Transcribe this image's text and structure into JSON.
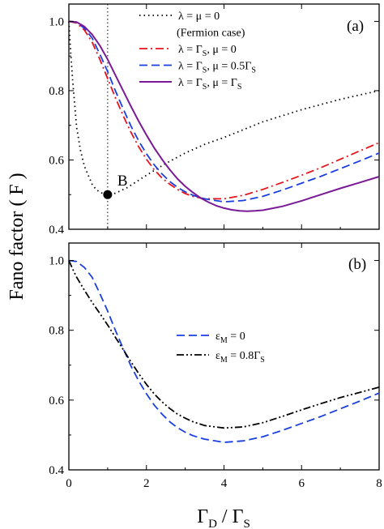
{
  "chart_data": [
    {
      "panel": "(a)",
      "type": "line",
      "xlabel": "Γ_D / Γ_S",
      "ylabel": "Fano factor ( F )",
      "xlim": [
        0,
        8
      ],
      "ylim": [
        0.4,
        1.05
      ],
      "y_ticks": [
        0.4,
        0.6,
        0.8,
        1.0
      ],
      "x_ticks": [
        0,
        2,
        4,
        6,
        8
      ],
      "grid": false,
      "legend_position": "top-right",
      "series": [
        {
          "name": "λ = μ = 0",
          "sublabel": "(Fermion case)",
          "color": "#000000",
          "style": "dotted",
          "x": [
            0.0,
            0.05,
            0.1,
            0.2,
            0.3,
            0.4,
            0.5,
            0.6,
            0.7,
            0.8,
            0.9,
            1.0,
            1.2,
            1.5,
            2.0,
            2.5,
            3.0,
            3.5,
            4.0,
            5.0,
            6.0,
            7.0,
            8.0
          ],
          "y": [
            1.0,
            0.905,
            0.826,
            0.694,
            0.627,
            0.582,
            0.556,
            0.53,
            0.515,
            0.507,
            0.502,
            0.5,
            0.504,
            0.52,
            0.556,
            0.59,
            0.62,
            0.645,
            0.665,
            0.71,
            0.745,
            0.775,
            0.8
          ]
        },
        {
          "name": "λ = Γ_S, μ = 0",
          "color": "#e8141c",
          "style": "dashdot",
          "x": [
            0.0,
            0.2,
            0.4,
            0.6,
            0.8,
            1.0,
            1.2,
            1.4,
            1.6,
            1.8,
            2.0,
            2.2,
            2.4,
            2.6,
            2.8,
            3.0,
            3.2,
            3.5,
            4.0,
            4.5,
            5.0,
            5.5,
            6.0,
            6.5,
            7.0,
            7.5,
            8.0
          ],
          "y": [
            1.0,
            0.995,
            0.975,
            0.94,
            0.89,
            0.835,
            0.78,
            0.728,
            0.68,
            0.638,
            0.602,
            0.572,
            0.548,
            0.53,
            0.515,
            0.503,
            0.495,
            0.488,
            0.488,
            0.498,
            0.515,
            0.535,
            0.556,
            0.578,
            0.602,
            0.626,
            0.65
          ]
        },
        {
          "name": "λ = Γ_S, μ = 0.5Γ_S",
          "color": "#1a3fe0",
          "style": "dashed",
          "x": [
            0.0,
            0.2,
            0.4,
            0.6,
            0.8,
            1.0,
            1.2,
            1.4,
            1.6,
            1.8,
            2.0,
            2.2,
            2.4,
            2.6,
            2.8,
            3.0,
            3.2,
            3.5,
            4.0,
            4.5,
            5.0,
            5.5,
            6.0,
            6.5,
            7.0,
            7.5,
            8.0
          ],
          "y": [
            1.0,
            0.997,
            0.98,
            0.952,
            0.905,
            0.855,
            0.8,
            0.748,
            0.698,
            0.655,
            0.618,
            0.586,
            0.56,
            0.538,
            0.521,
            0.508,
            0.498,
            0.488,
            0.479,
            0.483,
            0.495,
            0.513,
            0.533,
            0.553,
            0.575,
            0.597,
            0.62
          ]
        },
        {
          "name": "λ = Γ_S, μ = Γ_S",
          "color": "#7a1a96",
          "style": "solid",
          "x": [
            0.0,
            0.2,
            0.4,
            0.6,
            0.8,
            1.0,
            1.2,
            1.4,
            1.6,
            1.8,
            2.0,
            2.2,
            2.4,
            2.6,
            2.8,
            3.0,
            3.2,
            3.4,
            3.6,
            3.8,
            4.0,
            4.2,
            4.4,
            4.6,
            4.8,
            5.0,
            5.5,
            6.0,
            6.5,
            7.0,
            7.5,
            8.0
          ],
          "y": [
            1.0,
            0.998,
            0.985,
            0.962,
            0.93,
            0.89,
            0.845,
            0.8,
            0.755,
            0.712,
            0.672,
            0.635,
            0.602,
            0.572,
            0.546,
            0.524,
            0.506,
            0.49,
            0.478,
            0.468,
            0.461,
            0.456,
            0.453,
            0.452,
            0.453,
            0.455,
            0.466,
            0.482,
            0.5,
            0.518,
            0.535,
            0.552
          ]
        }
      ],
      "annotations": [
        {
          "text": "B",
          "x": 1.0,
          "y": 0.5
        },
        {
          "text": "(a)"
        }
      ],
      "reference_line": {
        "x": 1.0,
        "style": "dotted"
      }
    },
    {
      "panel": "(b)",
      "type": "line",
      "xlabel": "Γ_D / Γ_S",
      "ylabel": "Fano factor ( F )",
      "xlim": [
        0,
        8
      ],
      "ylim": [
        0.4,
        1.05
      ],
      "y_ticks": [
        0.4,
        0.6,
        0.8,
        1.0
      ],
      "x_ticks": [
        0,
        2,
        4,
        6,
        8
      ],
      "grid": false,
      "legend_position": "center",
      "series": [
        {
          "name": "ε_M = 0",
          "color": "#1a3fe0",
          "style": "dashed",
          "x": [
            0.0,
            0.2,
            0.4,
            0.6,
            0.8,
            1.0,
            1.2,
            1.4,
            1.6,
            1.8,
            2.0,
            2.2,
            2.4,
            2.6,
            2.8,
            3.0,
            3.2,
            3.5,
            4.0,
            4.5,
            5.0,
            5.5,
            6.0,
            6.5,
            7.0,
            7.5,
            8.0
          ],
          "y": [
            1.0,
            0.997,
            0.98,
            0.952,
            0.905,
            0.855,
            0.8,
            0.748,
            0.698,
            0.655,
            0.618,
            0.586,
            0.56,
            0.538,
            0.521,
            0.508,
            0.498,
            0.488,
            0.479,
            0.483,
            0.495,
            0.513,
            0.533,
            0.553,
            0.575,
            0.597,
            0.62
          ]
        },
        {
          "name": "ε_M = 0.8Γ_S",
          "color": "#000000",
          "style": "dashdotdot",
          "x": [
            0.0,
            0.1,
            0.2,
            0.4,
            0.6,
            0.8,
            1.0,
            1.2,
            1.4,
            1.6,
            1.8,
            2.0,
            2.2,
            2.4,
            2.6,
            2.8,
            3.0,
            3.2,
            3.5,
            4.0,
            4.5,
            5.0,
            5.5,
            6.0,
            6.5,
            7.0,
            7.5,
            8.0
          ],
          "y": [
            1.0,
            0.975,
            0.952,
            0.915,
            0.88,
            0.848,
            0.815,
            0.78,
            0.745,
            0.71,
            0.676,
            0.645,
            0.618,
            0.595,
            0.576,
            0.56,
            0.548,
            0.538,
            0.527,
            0.52,
            0.523,
            0.535,
            0.553,
            0.572,
            0.59,
            0.607,
            0.622,
            0.637
          ]
        }
      ],
      "annotations": [
        {
          "text": "(b)"
        }
      ]
    }
  ],
  "labels": {
    "ylabel": "Fano factor ( F )",
    "xlabel_main": "Γ",
    "xlabel_sub1": "D",
    "xlabel_slash": " / Γ",
    "xlabel_sub2": "S",
    "panel_a": "(a)",
    "panel_b": "(b)",
    "marker_b": "B",
    "legend_a": [
      {
        "text": "λ = μ = 0",
        "sub": "",
        "tail": ""
      },
      {
        "text": "(Fermion case)",
        "sub": "",
        "tail": ""
      },
      {
        "text": "λ = Γ",
        "sub": "S",
        "tail": ", μ = 0"
      },
      {
        "text": "λ = Γ",
        "sub": "S",
        "tail": ", μ = 0.5Γ",
        "sub2": "S"
      },
      {
        "text": "λ = Γ",
        "sub": "S",
        "tail": ", μ = Γ",
        "sub2": "S"
      }
    ],
    "legend_b": [
      {
        "text": "ε",
        "sub": "M",
        "tail": " = 0"
      },
      {
        "text": "ε",
        "sub": "M",
        "tail": " = 0.8Γ",
        "sub2": "S"
      }
    ]
  }
}
